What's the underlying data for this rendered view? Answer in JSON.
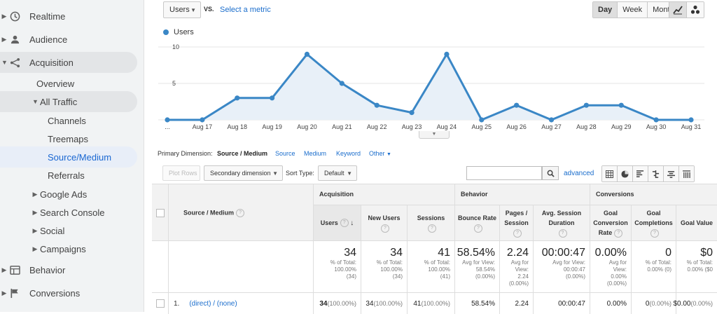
{
  "sidebar": {
    "items": [
      {
        "label": "Realtime",
        "icon": "clock-icon",
        "level": "top"
      },
      {
        "label": "Audience",
        "icon": "person-icon",
        "level": "top"
      },
      {
        "label": "Acquisition",
        "icon": "acquisition-icon",
        "level": "top",
        "expanded": true
      },
      {
        "label": "Overview",
        "level": "sub"
      },
      {
        "label": "All Traffic",
        "level": "sub",
        "expanded": true
      },
      {
        "label": "Channels",
        "level": "subsub"
      },
      {
        "label": "Treemaps",
        "level": "subsub"
      },
      {
        "label": "Source/Medium",
        "level": "subsub",
        "selected": true
      },
      {
        "label": "Referrals",
        "level": "subsub"
      },
      {
        "label": "Google Ads",
        "level": "sub"
      },
      {
        "label": "Search Console",
        "level": "sub"
      },
      {
        "label": "Social",
        "level": "sub"
      },
      {
        "label": "Campaigns",
        "level": "sub"
      },
      {
        "label": "Behavior",
        "icon": "behavior-icon",
        "level": "top"
      },
      {
        "label": "Conversions",
        "icon": "flag-icon",
        "level": "top"
      }
    ]
  },
  "toolbar": {
    "metric_value": "Users",
    "vs_label": "VS.",
    "select_metric": "Select a metric",
    "periods": [
      "Day",
      "Week",
      "Month"
    ],
    "active_period": "Day"
  },
  "chart_data": {
    "type": "line",
    "series": [
      {
        "name": "Users",
        "values": [
          0,
          0,
          3,
          3,
          9,
          5,
          2,
          1,
          9,
          0,
          2,
          0,
          2,
          2,
          0,
          0
        ]
      }
    ],
    "categories": [
      "...",
      "Aug 17",
      "Aug 18",
      "Aug 19",
      "Aug 20",
      "Aug 21",
      "Aug 22",
      "Aug 23",
      "Aug 24",
      "Aug 25",
      "Aug 26",
      "Aug 27",
      "Aug 28",
      "Aug 29",
      "Aug 30",
      "Aug 31"
    ],
    "yticks": [
      "10",
      "5"
    ],
    "ylim": [
      0,
      10
    ],
    "color": "#3a87c6",
    "fill": "#e8f0f8",
    "grid": true
  },
  "dimensions": {
    "label": "Primary Dimension:",
    "active": "Source / Medium",
    "options": [
      "Source",
      "Medium",
      "Keyword",
      "Other"
    ]
  },
  "table_controls": {
    "plot_rows": "Plot Rows",
    "secondary": "Secondary dimension",
    "sort_label": "Sort Type:",
    "sort_value": "Default",
    "advanced": "advanced"
  },
  "table": {
    "groups": [
      "Acquisition",
      "Behavior",
      "Conversions"
    ],
    "dim_header": "Source / Medium",
    "columns": [
      "Users",
      "New Users",
      "Sessions",
      "Bounce Rate",
      "Pages / Session",
      "Avg. Session Duration",
      "Goal Conversion Rate",
      "Goal Completions",
      "Goal Value"
    ],
    "totals": [
      {
        "big": "34",
        "small": [
          "% of Total:",
          "100.00%",
          "(34)"
        ]
      },
      {
        "big": "34",
        "small": [
          "% of Total:",
          "100.00%",
          "(34)"
        ]
      },
      {
        "big": "41",
        "small": [
          "% of Total:",
          "100.00%",
          "(41)"
        ]
      },
      {
        "big": "58.54%",
        "small": [
          "Avg for View:",
          "58.54%",
          "(0.00%)"
        ]
      },
      {
        "big": "2.24",
        "small": [
          "Avg for",
          "View:",
          "2.24",
          "(0.00%)"
        ]
      },
      {
        "big": "00:00:47",
        "small": [
          "Avg for View:",
          "00:00:47",
          "(0.00%)"
        ]
      },
      {
        "big": "0.00%",
        "small": [
          "Avg for",
          "View:",
          "0.00%",
          "(0.00%)"
        ]
      },
      {
        "big": "0",
        "small": [
          "% of Total:",
          "0.00% (0)"
        ]
      },
      {
        "big": "$0",
        "small": [
          "% of Total:",
          "0.00% ($0"
        ]
      }
    ],
    "rows": [
      {
        "index": "1.",
        "name": "(direct) / (none)",
        "cells": [
          {
            "v": "34",
            "p": "(100.00%)"
          },
          {
            "v": "34",
            "p": "(100.00%)"
          },
          {
            "v": "41",
            "p": "(100.00%)"
          },
          {
            "v": "58.54%",
            "p": ""
          },
          {
            "v": "2.24",
            "p": ""
          },
          {
            "v": "00:00:47",
            "p": ""
          },
          {
            "v": "0.00%",
            "p": ""
          },
          {
            "v": "0",
            "p": "(0.00%)"
          },
          {
            "v": "$0.00",
            "p": "(0.00%)"
          }
        ]
      }
    ]
  }
}
